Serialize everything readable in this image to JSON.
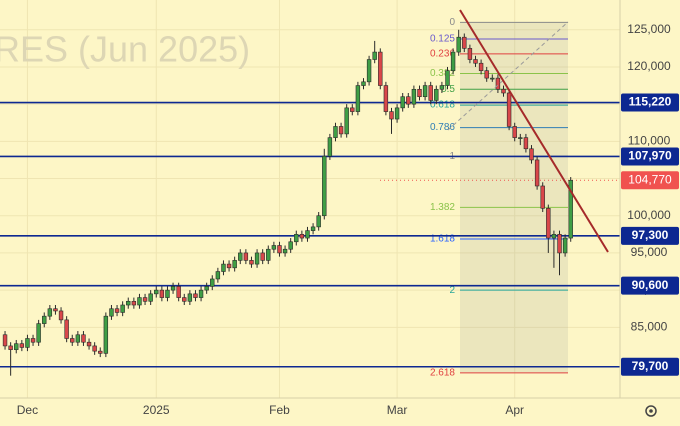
{
  "chart_data": {
    "type": "candlestick",
    "watermark": "RES (Jun 2025)",
    "xlim": [
      -0.9,
      109.8
    ],
    "xticks": [
      {
        "value": 4,
        "label": "Dec"
      },
      {
        "value": 27,
        "label": "2025"
      },
      {
        "value": 49,
        "label": "Feb"
      },
      {
        "value": 70,
        "label": "Mar"
      },
      {
        "value": 91,
        "label": "Apr"
      }
    ],
    "ylim": [
      75500,
      129000
    ],
    "yticks": [
      {
        "value": 85000,
        "label": "85,000"
      },
      {
        "value": 90000,
        "label": "90,000"
      },
      {
        "value": 95000,
        "label": "95,000"
      },
      {
        "value": 100000,
        "label": "100,000"
      },
      {
        "value": 105000,
        "label": "105,000"
      },
      {
        "value": 110000,
        "label": "110,000"
      },
      {
        "value": 115000,
        "label": "115,000"
      },
      {
        "value": 120000,
        "label": "120,000"
      },
      {
        "value": 125000,
        "label": "125,000"
      }
    ],
    "grid": true,
    "up_color": "#3f9e45",
    "down_color": "#d9474a",
    "open": [
      84000,
      82500,
      82000,
      82800,
      82300,
      83500,
      83000,
      85500,
      86500,
      87500,
      87200,
      86000,
      83500,
      83000,
      84000,
      83000,
      82500,
      81800,
      81500,
      86500,
      87500,
      87000,
      88000,
      88500,
      88000,
      89000,
      88500,
      89500,
      90000,
      89000,
      90000,
      90500,
      89000,
      88500,
      89500,
      89000,
      90000,
      90500,
      91500,
      92500,
      93500,
      93000,
      94000,
      95000,
      94000,
      93500,
      95000,
      94000,
      95500,
      96000,
      95000,
      95500,
      96500,
      97500,
      97000,
      98000,
      98500,
      100000,
      108000,
      110500,
      112000,
      111000,
      114500,
      114000,
      117500,
      118000,
      121000,
      122000,
      117500,
      114000,
      113000,
      114500,
      116000,
      115000,
      117000,
      116000,
      117500,
      115500,
      117000,
      117500,
      119500,
      122000,
      124000,
      122500,
      121000,
      120500,
      119500,
      118500,
      118500,
      117000,
      116500,
      112000,
      110500,
      110500,
      109000,
      107500,
      104000,
      101000,
      97000,
      97500,
      95000,
      97000
    ],
    "high": [
      84500,
      83000,
      83300,
      83300,
      84000,
      84000,
      86000,
      87000,
      88000,
      88000,
      87700,
      86500,
      84000,
      84500,
      84500,
      83500,
      83000,
      82300,
      87000,
      88000,
      88000,
      88500,
      89000,
      89000,
      89500,
      89500,
      90000,
      90500,
      90500,
      90500,
      91000,
      91000,
      89500,
      90000,
      90000,
      90500,
      91000,
      92000,
      93000,
      94000,
      94000,
      94500,
      95500,
      95500,
      94500,
      95500,
      95500,
      96000,
      96500,
      96500,
      96000,
      97000,
      98000,
      98000,
      98500,
      99000,
      100500,
      109000,
      111000,
      112500,
      112500,
      115000,
      115000,
      118000,
      118500,
      121500,
      123500,
      122500,
      118000,
      114500,
      115000,
      116500,
      116500,
      117500,
      117500,
      118000,
      118000,
      117500,
      118000,
      120000,
      122500,
      125000,
      124500,
      123000,
      121500,
      121000,
      120000,
      119000,
      119000,
      117500,
      117000,
      112500,
      111000,
      111000,
      109500,
      108000,
      104500,
      101500,
      98000,
      98000,
      97500,
      105200
    ],
    "low": [
      82000,
      78500,
      81500,
      81800,
      81800,
      82500,
      82500,
      85000,
      86000,
      86700,
      85500,
      83000,
      82500,
      82500,
      82500,
      82000,
      81300,
      81000,
      81000,
      86000,
      86500,
      86500,
      87500,
      87500,
      87500,
      88000,
      88000,
      89000,
      88500,
      88500,
      89500,
      88500,
      88000,
      88000,
      88500,
      88500,
      89500,
      90000,
      91000,
      92000,
      92500,
      92500,
      93500,
      93500,
      93000,
      93000,
      93500,
      93500,
      95000,
      94500,
      94500,
      95000,
      96000,
      96500,
      96500,
      97500,
      98000,
      99500,
      107500,
      110000,
      110500,
      110500,
      113500,
      113500,
      117000,
      117500,
      120500,
      117000,
      113500,
      111000,
      112500,
      114000,
      114500,
      114500,
      115500,
      115500,
      115000,
      115000,
      116500,
      117000,
      119000,
      121500,
      122000,
      120500,
      120000,
      119000,
      118000,
      118000,
      116500,
      116000,
      111500,
      110000,
      109500,
      108500,
      107000,
      103500,
      100500,
      95000,
      93000,
      92000,
      94500,
      96500
    ],
    "close": [
      82500,
      82000,
      82800,
      82300,
      83500,
      83000,
      85500,
      86500,
      87500,
      87200,
      86000,
      83500,
      83000,
      84000,
      83000,
      82500,
      81800,
      81500,
      86500,
      87500,
      87000,
      88000,
      88500,
      88000,
      89000,
      88500,
      89500,
      90000,
      89000,
      90000,
      90500,
      89000,
      88500,
      89500,
      89000,
      90000,
      90500,
      91500,
      92500,
      93500,
      93000,
      94000,
      95000,
      94000,
      93500,
      95000,
      94000,
      95500,
      96000,
      95000,
      95500,
      96500,
      97500,
      97000,
      98000,
      98500,
      100000,
      108000,
      110500,
      112000,
      111000,
      114500,
      114000,
      117500,
      118000,
      121000,
      122000,
      117500,
      114000,
      113000,
      114500,
      116000,
      115000,
      117000,
      116000,
      117500,
      115500,
      117000,
      117500,
      119500,
      122000,
      124000,
      122500,
      121000,
      120500,
      119500,
      118500,
      118500,
      117000,
      116500,
      112000,
      110500,
      110500,
      109000,
      107500,
      104000,
      101000,
      97000,
      97500,
      95000,
      97000,
      104770
    ],
    "levels": [
      {
        "value": 115220,
        "label": "115,220"
      },
      {
        "value": 107970,
        "label": "107,970"
      },
      {
        "value": 97300,
        "label": "97,300"
      },
      {
        "value": 90600,
        "label": "90,600"
      },
      {
        "value": 79700,
        "label": "79,700"
      }
    ],
    "level_color": "#0d2891",
    "last_price": {
      "value": 104770,
      "label": "104,770"
    },
    "last_price_color": "#f0524f",
    "fib": {
      "start": 126000,
      "end": 108000,
      "levels": [
        0,
        0.125,
        0.236,
        0.382,
        0.5,
        0.618,
        0.786,
        1,
        1.382,
        1.618,
        2,
        2.618
      ],
      "colors": [
        "#8a8a8a",
        "#6a5acd",
        "#e04040",
        "#8bc34a",
        "#43a047",
        "#26a69a",
        "#2e7db5",
        "#8a8a8a",
        "#8bc34a",
        "#2962ff",
        "#26a69a",
        "#e04040"
      ]
    }
  }
}
